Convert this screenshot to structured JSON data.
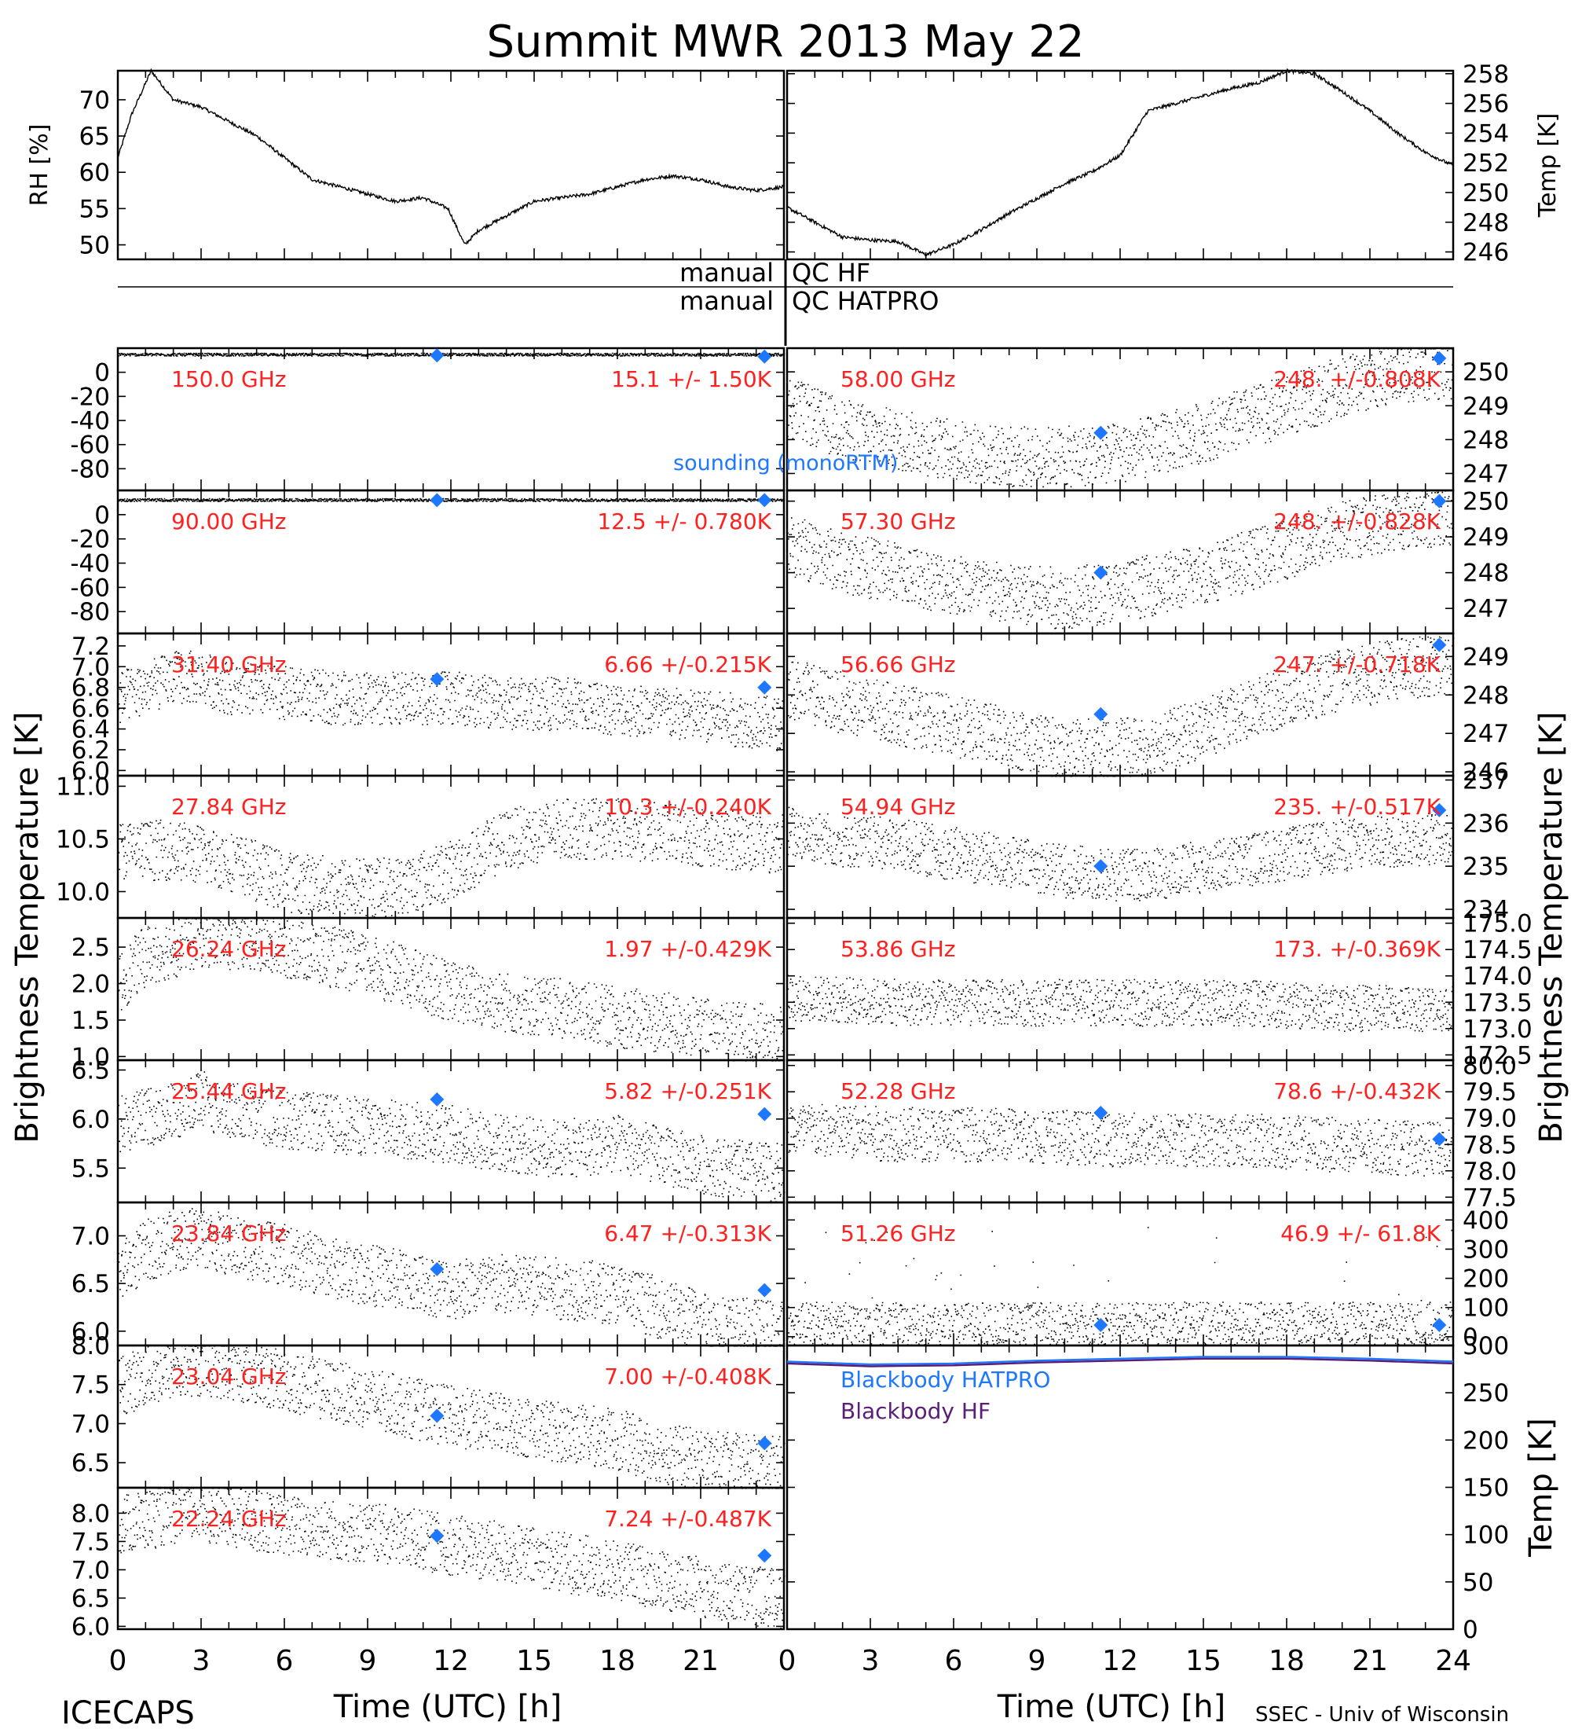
{
  "figure": {
    "title": "Summit MWR 2013 May 22",
    "footer_left": "ICECAPS",
    "footer_right": "SSEC - Univ of Wisconsin",
    "left_ylabel": "Brightness Temperature [K]",
    "right_ylabel": "Brightness Temperature [K]",
    "xlabel": "Time (UTC) [h]",
    "qc_hf": {
      "left": "manual",
      "right": "QC HF"
    },
    "qc_hatpro": {
      "left": "manual",
      "right": "QC HATPRO"
    },
    "sounding_label": "sounding (monoRTM)",
    "colors": {
      "obs": "#000000",
      "freq": "#ff2020",
      "sounding": "#1e78ff",
      "bb_hatpro": "#1e78ff",
      "bb_hf": "#5a1e78"
    }
  },
  "chart_data": [
    {
      "id": "rh",
      "type": "line",
      "ylabel": "RH [%]",
      "ylim": [
        48,
        74
      ],
      "yticks": [
        50,
        55,
        60,
        65,
        70
      ],
      "xlim": [
        0,
        24
      ],
      "x": [
        0,
        0.5,
        1.2,
        2,
        3,
        4,
        5,
        6,
        7,
        8,
        9,
        10,
        11,
        11.9,
        12.5,
        13,
        14,
        15,
        16,
        17,
        18,
        19,
        20,
        21,
        22,
        23,
        24
      ],
      "y": [
        62,
        68,
        74,
        70,
        69,
        67,
        65,
        62,
        59,
        58,
        57,
        56,
        56.5,
        55,
        50,
        52,
        54,
        56,
        56.5,
        57,
        58,
        59,
        59.5,
        59,
        58,
        57.5,
        58
      ]
    },
    {
      "id": "temp",
      "type": "line",
      "ylabel": "Temp [K]",
      "ylim": [
        245.5,
        258.2
      ],
      "yticks": [
        246,
        248,
        250,
        252,
        254,
        256,
        258
      ],
      "xlim": [
        0,
        24
      ],
      "x": [
        0,
        1,
        2,
        3,
        4,
        5,
        6,
        7,
        8,
        9,
        10,
        11,
        12,
        13,
        14,
        15,
        16,
        17,
        18,
        19,
        20,
        21,
        22,
        23,
        24
      ],
      "y": [
        249,
        248,
        247,
        246.8,
        246.7,
        245.8,
        246.5,
        247.5,
        248.6,
        249.6,
        250.6,
        251.4,
        252.5,
        255.5,
        256,
        256.5,
        257,
        257.4,
        258.2,
        258,
        256.8,
        255.5,
        254,
        252.7,
        251.8
      ]
    },
    {
      "id": "tb-150",
      "type": "scatter",
      "freq": "150.0 GHz",
      "stats": "15.1 +/- 1.50K",
      "ylim": [
        -98,
        20
      ],
      "yticks": [
        0,
        -20,
        -40,
        -60,
        -80
      ],
      "xlim": [
        0,
        24
      ],
      "x": [
        0,
        6,
        12,
        18,
        24
      ],
      "y": [
        15.1,
        15.2,
        15.0,
        15.1,
        15.0
      ],
      "sounding": [
        {
          "x": 11.5,
          "y": 14
        },
        {
          "x": 23.3,
          "y": 13
        }
      ]
    },
    {
      "id": "tb-90",
      "type": "scatter",
      "freq": "90.00 GHz",
      "stats": "12.5 +/- 0.780K",
      "ylim": [
        -98,
        20
      ],
      "yticks": [
        0,
        -20,
        -40,
        -60,
        -80
      ],
      "xlim": [
        0,
        24
      ],
      "x": [
        0,
        6,
        12,
        18,
        24
      ],
      "y": [
        12.5,
        12.5,
        12.5,
        12.5,
        12.5
      ],
      "sounding": [
        {
          "x": 11.5,
          "y": 12
        },
        {
          "x": 23.3,
          "y": 12
        }
      ]
    },
    {
      "id": "tb-3140",
      "type": "scatter",
      "freq": "31.40 GHz",
      "stats": "6.66 +/-0.215K",
      "ylim": [
        5.95,
        7.32
      ],
      "yticks": [
        6.0,
        6.2,
        6.4,
        6.6,
        6.8,
        7.0,
        7.2
      ],
      "xlim": [
        0,
        24
      ],
      "x": [
        0,
        1,
        2,
        3,
        4,
        6,
        8,
        10,
        12,
        14,
        16,
        18,
        20,
        22,
        24
      ],
      "y": [
        6.7,
        6.8,
        6.9,
        6.9,
        6.8,
        6.75,
        6.7,
        6.7,
        6.7,
        6.65,
        6.65,
        6.6,
        6.55,
        6.5,
        6.45
      ],
      "sounding": [
        {
          "x": 11.5,
          "y": 6.88
        },
        {
          "x": 23.3,
          "y": 6.8
        }
      ]
    },
    {
      "id": "tb-2784",
      "type": "scatter",
      "freq": "27.84 GHz",
      "stats": "10.3 +/-0.240K",
      "ylim": [
        9.75,
        11.1
      ],
      "yticks": [
        10.0,
        10.5,
        11.0
      ],
      "xlim": [
        0,
        24
      ],
      "x": [
        0,
        2,
        4,
        6,
        8,
        10,
        12,
        14,
        16,
        18,
        20,
        22,
        24
      ],
      "y": [
        10.4,
        10.4,
        10.3,
        10.1,
        10.05,
        10.05,
        10.2,
        10.5,
        10.6,
        10.6,
        10.55,
        10.5,
        10.45
      ],
      "sounding": []
    },
    {
      "id": "tb-2624",
      "type": "scatter",
      "freq": "26.24 GHz",
      "stats": "1.97 +/-0.429K",
      "ylim": [
        0.95,
        2.9
      ],
      "yticks": [
        1.0,
        1.5,
        2.0,
        2.5
      ],
      "xlim": [
        0,
        24
      ],
      "x": [
        0,
        1,
        2,
        3,
        4,
        6,
        8,
        10,
        12,
        14,
        16,
        18,
        20,
        22,
        24
      ],
      "y": [
        2.0,
        2.4,
        2.5,
        2.65,
        2.6,
        2.5,
        2.35,
        2.15,
        1.9,
        1.75,
        1.65,
        1.55,
        1.45,
        1.35,
        1.3
      ],
      "sounding": []
    },
    {
      "id": "tb-2544",
      "type": "scatter",
      "freq": "25.44 GHz",
      "stats": "5.82 +/-0.251K",
      "ylim": [
        5.15,
        6.6
      ],
      "yticks": [
        5.5,
        6.0,
        6.5
      ],
      "xlim": [
        0,
        24
      ],
      "x": [
        0,
        2,
        3,
        4,
        6,
        8,
        10,
        12,
        14,
        16,
        18,
        20,
        22,
        24
      ],
      "y": [
        5.95,
        6.1,
        6.2,
        6.1,
        6.0,
        5.95,
        5.9,
        5.85,
        5.75,
        5.7,
        5.75,
        5.6,
        5.5,
        5.45
      ],
      "sounding": [
        {
          "x": 11.5,
          "y": 6.2
        },
        {
          "x": 23.3,
          "y": 6.05
        }
      ]
    },
    {
      "id": "tb-2384",
      "type": "scatter",
      "freq": "23.84 GHz",
      "stats": "6.47 +/-0.313K",
      "ylim": [
        5.85,
        7.35
      ],
      "yticks": [
        6.0,
        6.5,
        7.0
      ],
      "xlim": [
        0,
        24
      ],
      "x": [
        0,
        1,
        2,
        3,
        4,
        6,
        8,
        10,
        12,
        14,
        16,
        18,
        20,
        22,
        24
      ],
      "y": [
        6.6,
        6.85,
        6.95,
        7.0,
        6.9,
        6.8,
        6.65,
        6.55,
        6.45,
        6.5,
        6.45,
        6.4,
        6.2,
        6.05,
        6.0
      ],
      "sounding": [
        {
          "x": 11.5,
          "y": 6.65
        },
        {
          "x": 23.3,
          "y": 6.43
        }
      ]
    },
    {
      "id": "tb-2304",
      "type": "scatter",
      "freq": "23.04 GHz",
      "stats": "7.00 +/-0.408K",
      "ylim": [
        6.18,
        8.0
      ],
      "yticks": [
        6.5,
        7.0,
        7.5,
        8.0
      ],
      "xlim": [
        0,
        24
      ],
      "x": [
        0,
        1,
        2,
        3,
        4,
        6,
        8,
        10,
        12,
        14,
        16,
        18,
        20,
        22,
        24
      ],
      "y": [
        7.5,
        7.6,
        7.7,
        7.75,
        7.7,
        7.55,
        7.4,
        7.25,
        7.1,
        7.0,
        6.9,
        6.8,
        6.6,
        6.5,
        6.45
      ],
      "sounding": [
        {
          "x": 11.5,
          "y": 7.1
        },
        {
          "x": 23.3,
          "y": 6.75
        }
      ]
    },
    {
      "id": "tb-2224",
      "type": "scatter",
      "freq": "22.24 GHz",
      "stats": "7.24 +/-0.487K",
      "ylim": [
        5.95,
        8.45
      ],
      "yticks": [
        6.0,
        6.5,
        7.0,
        7.5,
        8.0
      ],
      "xlim": [
        0,
        24
      ],
      "x": [
        0,
        1,
        2,
        3,
        4,
        6,
        8,
        10,
        12,
        14,
        16,
        18,
        20,
        22,
        24
      ],
      "y": [
        7.8,
        7.9,
        8.0,
        8.05,
        7.95,
        7.8,
        7.7,
        7.6,
        7.45,
        7.3,
        7.15,
        7.0,
        6.8,
        6.6,
        6.5
      ],
      "sounding": [
        {
          "x": 11.5,
          "y": 7.6
        },
        {
          "x": 23.3,
          "y": 7.25
        }
      ]
    },
    {
      "id": "tb-5800",
      "type": "scatter",
      "freq": "58.00 GHz",
      "stats": "248. +/-0.808K",
      "ylim": [
        246.5,
        250.7
      ],
      "yticks": [
        247,
        248,
        249,
        250
      ],
      "xlim": [
        0,
        24
      ],
      "x": [
        0,
        2,
        4,
        6,
        8,
        10,
        12,
        14,
        16,
        18,
        20,
        22,
        24
      ],
      "y": [
        249,
        248.3,
        248,
        247.7,
        247.5,
        247.5,
        247.6,
        248,
        248.5,
        249,
        249.6,
        250,
        250.1
      ],
      "sounding": [
        {
          "x": 11.3,
          "y": 248.2
        },
        {
          "x": 23.5,
          "y": 250.4
        }
      ]
    },
    {
      "id": "tb-5730",
      "type": "scatter",
      "freq": "57.30 GHz",
      "stats": "248. +/-0.828K",
      "ylim": [
        246.3,
        250.3
      ],
      "yticks": [
        247,
        248,
        249,
        250
      ],
      "xlim": [
        0,
        24
      ],
      "x": [
        0,
        2,
        4,
        6,
        8,
        10,
        12,
        14,
        16,
        18,
        20,
        22,
        24
      ],
      "y": [
        248.8,
        248.3,
        248,
        247.7,
        247.4,
        247.3,
        247.5,
        247.8,
        248.2,
        248.7,
        249.2,
        249.5,
        249.6
      ],
      "sounding": [
        {
          "x": 11.3,
          "y": 248
        },
        {
          "x": 23.5,
          "y": 250
        }
      ]
    },
    {
      "id": "tb-5666",
      "type": "scatter",
      "freq": "56.66 GHz",
      "stats": "247. +/-0.718K",
      "ylim": [
        245.9,
        249.6
      ],
      "yticks": [
        246,
        247,
        248,
        249
      ],
      "xlim": [
        0,
        24
      ],
      "x": [
        0,
        2,
        4,
        6,
        8,
        10,
        12,
        14,
        16,
        18,
        20,
        22,
        24
      ],
      "y": [
        248.2,
        247.8,
        247.5,
        247.2,
        246.9,
        246.6,
        246.6,
        246.9,
        247.4,
        248,
        248.4,
        248.7,
        248.8
      ],
      "sounding": [
        {
          "x": 11.3,
          "y": 247.5
        },
        {
          "x": 23.5,
          "y": 249.3
        }
      ]
    },
    {
      "id": "tb-5494",
      "type": "scatter",
      "freq": "54.94 GHz",
      "stats": "235. +/-0.517K",
      "ylim": [
        233.8,
        237.1
      ],
      "yticks": [
        234,
        235,
        236,
        237
      ],
      "xlim": [
        0,
        24
      ],
      "x": [
        0,
        2,
        4,
        6,
        8,
        10,
        12,
        14,
        16,
        18,
        20,
        22,
        24
      ],
      "y": [
        235.8,
        235.6,
        235.5,
        235.3,
        235.1,
        234.9,
        234.8,
        234.9,
        235.1,
        235.3,
        235.5,
        235.6,
        235.7
      ],
      "sounding": [
        {
          "x": 11.3,
          "y": 235
        },
        {
          "x": 23.5,
          "y": 236.3
        }
      ]
    },
    {
      "id": "tb-5386",
      "type": "scatter",
      "freq": "53.86 GHz",
      "stats": "173. +/-0.369K",
      "ylim": [
        172.4,
        175.1
      ],
      "yticks": [
        172.5,
        173.0,
        173.5,
        174.0,
        174.5,
        175.0
      ],
      "xlim": [
        0,
        24
      ],
      "x": [
        0,
        4,
        8,
        12,
        16,
        20,
        24
      ],
      "y": [
        173.6,
        173.5,
        173.5,
        173.5,
        173.5,
        173.4,
        173.4
      ],
      "sounding": []
    },
    {
      "id": "tb-5228",
      "type": "scatter",
      "freq": "52.28 GHz",
      "stats": "78.6 +/-0.432K",
      "ylim": [
        77.4,
        80.1
      ],
      "yticks": [
        77.5,
        78.0,
        78.5,
        79.0,
        79.5,
        80.0
      ],
      "xlim": [
        0,
        24
      ],
      "x": [
        0,
        4,
        8,
        12,
        16,
        20,
        24
      ],
      "y": [
        78.8,
        78.7,
        78.7,
        78.6,
        78.6,
        78.5,
        78.4
      ],
      "sounding": [
        {
          "x": 11.3,
          "y": 79.1
        },
        {
          "x": 23.5,
          "y": 78.6
        }
      ]
    },
    {
      "id": "tb-5126",
      "type": "scatter",
      "freq": "51.26 GHz",
      "stats": "46.9 +/- 61.8K",
      "ylim": [
        -30,
        460
      ],
      "yticks": [
        0,
        100,
        200,
        300,
        400
      ],
      "xlim": [
        0,
        24
      ],
      "x": [
        0,
        4,
        8,
        12,
        16,
        20,
        24
      ],
      "y": [
        46,
        46,
        47,
        46,
        47,
        46,
        47
      ],
      "sounding": [
        {
          "x": 11.3,
          "y": 40
        },
        {
          "x": 23.5,
          "y": 40
        }
      ]
    },
    {
      "id": "blackbody",
      "type": "line",
      "ylabel": "Temp [K]",
      "ylim": [
        0,
        300
      ],
      "yticks": [
        0,
        50,
        100,
        150,
        200,
        250,
        300
      ],
      "xlim": [
        0,
        24
      ],
      "series": [
        {
          "name": "Blackbody HATPRO",
          "x": [
            0,
            3,
            6,
            9,
            12,
            15,
            18,
            21,
            24
          ],
          "y": [
            283,
            280,
            281,
            284,
            286,
            288,
            288,
            286,
            283
          ]
        },
        {
          "name": "Blackbody HF",
          "x": [
            0,
            3,
            6,
            9,
            12,
            15,
            18,
            21,
            24
          ],
          "y": [
            281,
            278,
            279,
            282,
            284,
            286,
            286,
            284,
            281
          ]
        }
      ]
    }
  ]
}
